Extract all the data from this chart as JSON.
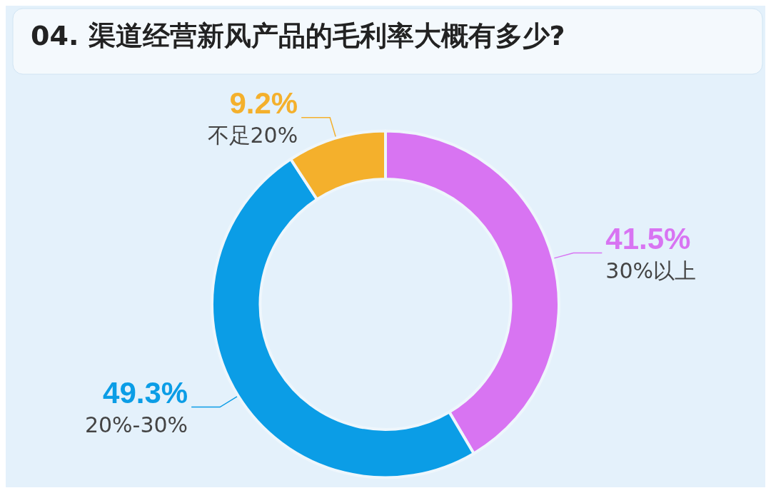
{
  "chart_data": {
    "type": "donut",
    "title": "04. 渠道经营新风产品的毛利率大概有多少?",
    "categories": [
      "30%以上",
      "20%-30%",
      "不足20%"
    ],
    "values": [
      41.5,
      49.3,
      9.2
    ],
    "colors": [
      "#d874f2",
      "#0b9de6",
      "#f4b02c"
    ],
    "value_labels": [
      "41.5%",
      "49.3%",
      "9.2%"
    ],
    "legend": false
  }
}
